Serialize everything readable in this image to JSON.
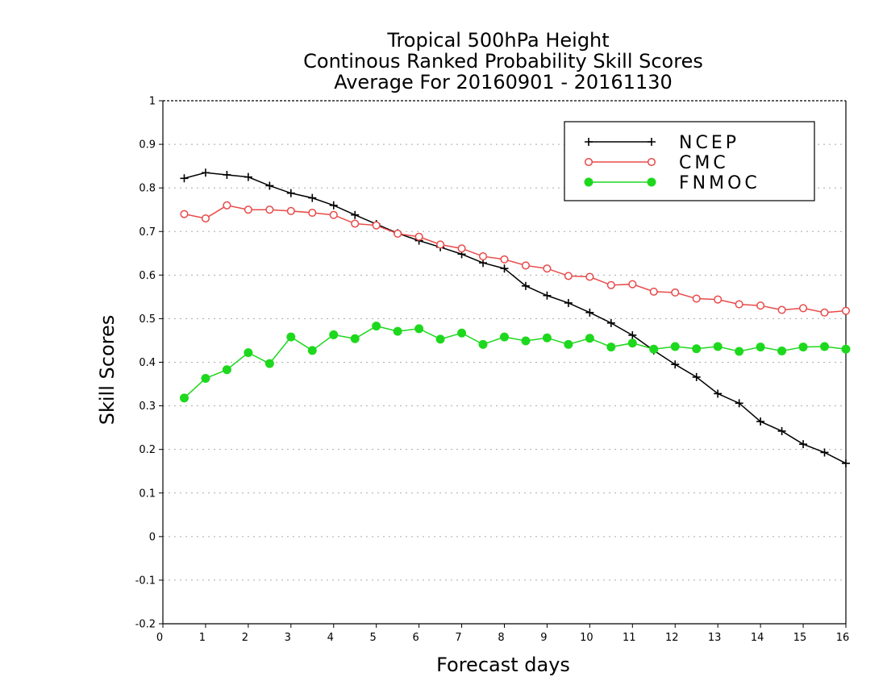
{
  "chart_data": {
    "type": "line",
    "title": [
      "Tropical 500hPa Height",
      "Continous Ranked Probability Skill Scores",
      "Average For 20160901 - 20161130"
    ],
    "xlabel": "Forecast days",
    "ylabel": "Skill Scores",
    "xlim": [
      0,
      16
    ],
    "ylim": [
      -0.2,
      1
    ],
    "xticks": [
      0,
      1,
      2,
      3,
      4,
      5,
      6,
      7,
      8,
      9,
      10,
      11,
      12,
      13,
      14,
      15,
      16
    ],
    "yticks": [
      -0.2,
      -0.1,
      0,
      0.1,
      0.2,
      0.3,
      0.4,
      0.5,
      0.6,
      0.7,
      0.8,
      0.9,
      1
    ],
    "ytick_labels": [
      "-0.2",
      "-0.1",
      "0",
      "0.1",
      "0.2",
      "0.3",
      "0.4",
      "0.5",
      "0.6",
      "0.7",
      "0.8",
      "0.9",
      "1"
    ],
    "grid": true,
    "legend_position": "top-right",
    "x": [
      0.5,
      1,
      1.5,
      2,
      2.5,
      3,
      3.5,
      4,
      4.5,
      5,
      5.5,
      6,
      6.5,
      7,
      7.5,
      8,
      8.5,
      9,
      9.5,
      10,
      10.5,
      11,
      11.5,
      12,
      12.5,
      13,
      13.5,
      14,
      14.5,
      15,
      15.5,
      16
    ],
    "series": [
      {
        "name": "NCEP",
        "color": "#000000",
        "marker": "plus",
        "values": [
          0.822,
          0.835,
          0.83,
          0.825,
          0.805,
          0.788,
          0.777,
          0.76,
          0.738,
          0.717,
          0.696,
          0.679,
          0.664,
          0.648,
          0.628,
          0.615,
          0.575,
          0.553,
          0.536,
          0.514,
          0.49,
          0.462,
          0.427,
          0.395,
          0.366,
          0.328,
          0.306,
          0.264,
          0.242,
          0.212,
          0.193,
          0.168
        ]
      },
      {
        "name": "CMC",
        "color": "#e84a4a",
        "marker": "open-circle",
        "values": [
          0.74,
          0.73,
          0.76,
          0.75,
          0.75,
          0.747,
          0.743,
          0.738,
          0.718,
          0.714,
          0.695,
          0.688,
          0.67,
          0.661,
          0.643,
          0.636,
          0.622,
          0.615,
          0.598,
          0.596,
          0.577,
          0.579,
          0.562,
          0.56,
          0.546,
          0.544,
          0.533,
          0.53,
          0.52,
          0.524,
          0.514,
          0.518
        ]
      },
      {
        "name": "FNMOC",
        "color": "#1ed81e",
        "marker": "filled-circle",
        "values": [
          0.318,
          0.363,
          0.383,
          0.422,
          0.397,
          0.458,
          0.427,
          0.463,
          0.454,
          0.483,
          0.471,
          0.477,
          0.453,
          0.467,
          0.441,
          0.458,
          0.449,
          0.456,
          0.441,
          0.455,
          0.435,
          0.444,
          0.43,
          0.436,
          0.431,
          0.436,
          0.425,
          0.435,
          0.426,
          0.435,
          0.436,
          0.43
        ]
      }
    ]
  }
}
